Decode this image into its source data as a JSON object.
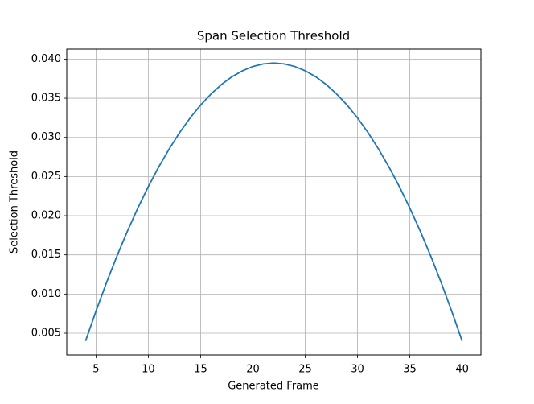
{
  "chart_data": {
    "type": "line",
    "title": "Span Selection Threshold",
    "x_label": "Generated Frame",
    "y_label": "Selection Threshold",
    "x": [
      4,
      5,
      6,
      7,
      8,
      9,
      10,
      11,
      12,
      13,
      14,
      15,
      16,
      17,
      18,
      19,
      20,
      21,
      22,
      23,
      24,
      25,
      26,
      27,
      28,
      29,
      30,
      31,
      32,
      33,
      34,
      35,
      36,
      37,
      38,
      39,
      40
    ],
    "series": [
      {
        "name": "Selection Threshold",
        "color": "#1f77b4",
        "values": [
          0.004,
          0.00783,
          0.01145,
          0.01485,
          0.01802,
          0.02098,
          0.02372,
          0.02624,
          0.02854,
          0.03063,
          0.03249,
          0.03413,
          0.03555,
          0.03676,
          0.03775,
          0.03851,
          0.03906,
          0.03939,
          0.0395,
          0.03939,
          0.03906,
          0.03851,
          0.03775,
          0.03676,
          0.03555,
          0.03413,
          0.03249,
          0.03063,
          0.02854,
          0.02624,
          0.02372,
          0.02098,
          0.01802,
          0.01485,
          0.01145,
          0.00783,
          0.004
        ]
      }
    ],
    "xlim": [
      2.2,
      41.8
    ],
    "ylim": [
      0.002225,
      0.041275
    ],
    "xticks": [
      5,
      10,
      15,
      20,
      25,
      30,
      35,
      40
    ],
    "yticks": [
      {
        "value": 0.005,
        "label": "0.005"
      },
      {
        "value": 0.01,
        "label": "0.010"
      },
      {
        "value": 0.015,
        "label": "0.015"
      },
      {
        "value": 0.02,
        "label": "0.020"
      },
      {
        "value": 0.025,
        "label": "0.025"
      },
      {
        "value": 0.03,
        "label": "0.030"
      },
      {
        "value": 0.035,
        "label": "0.035"
      },
      {
        "value": 0.04,
        "label": "0.040"
      }
    ],
    "grid": true
  }
}
